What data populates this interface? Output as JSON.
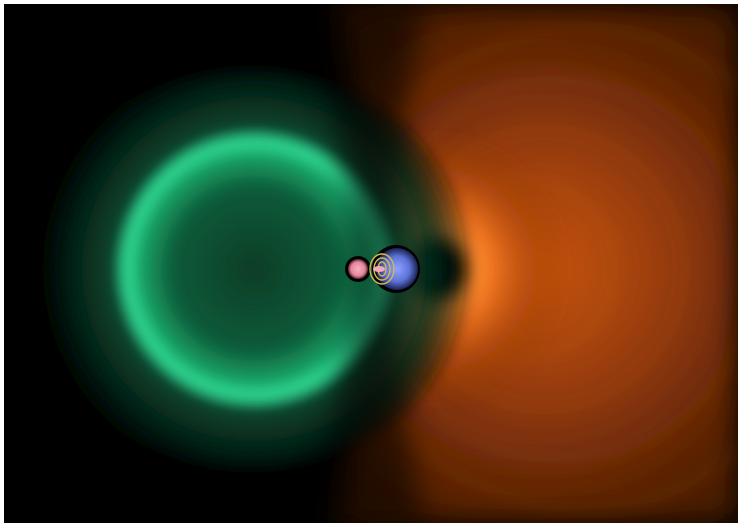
{
  "image": {
    "background_color": "#000000",
    "frame_color": "#ffffff",
    "palette": {
      "orange_deep": "#4a1c05",
      "orange_mid": "#c14e0c",
      "orange_bright": "#ff8a2a",
      "green_deep": "#052214",
      "green_mid": "#0f7a4d",
      "green_bright": "#2fe49a",
      "blue_core": "#5d73d8",
      "pink_core": "#e3869a",
      "gold_core": "#d6b84a"
    }
  }
}
